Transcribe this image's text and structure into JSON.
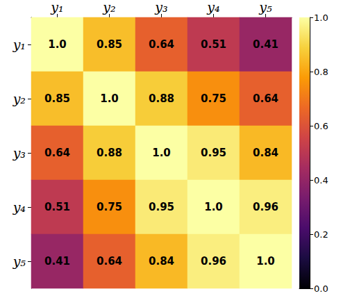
{
  "chart_data": {
    "type": "heatmap",
    "x_categories": [
      "y₁",
      "y₂",
      "y₃",
      "y₄",
      "y₅"
    ],
    "y_categories": [
      "y₁",
      "y₂",
      "y₃",
      "y₄",
      "y₅"
    ],
    "values": [
      [
        1.0,
        0.85,
        0.64,
        0.51,
        0.41
      ],
      [
        0.85,
        1.0,
        0.88,
        0.75,
        0.64
      ],
      [
        0.64,
        0.88,
        1.0,
        0.95,
        0.84
      ],
      [
        0.51,
        0.75,
        0.95,
        1.0,
        0.96
      ],
      [
        0.41,
        0.64,
        0.84,
        0.96,
        1.0
      ]
    ],
    "value_labels": [
      [
        "1.0",
        "0.85",
        "0.64",
        "0.51",
        "0.41"
      ],
      [
        "0.85",
        "1.0",
        "0.88",
        "0.75",
        "0.64"
      ],
      [
        "0.64",
        "0.88",
        "1.0",
        "0.95",
        "0.84"
      ],
      [
        "0.51",
        "0.75",
        "0.95",
        "1.0",
        "0.96"
      ],
      [
        "0.41",
        "0.64",
        "0.84",
        "0.96",
        "1.0"
      ]
    ],
    "data_labels": true,
    "colorbar_range": [
      0,
      1
    ],
    "colorbar_ticks": [
      {
        "value": 0,
        "label": "0.0"
      },
      {
        "value": 0.2,
        "label": "0.2"
      },
      {
        "value": 0.4,
        "label": "0.4"
      },
      {
        "value": 0.6,
        "label": "0.6"
      },
      {
        "value": 0.8,
        "label": "0.8"
      },
      {
        "value": 1,
        "label": "1.0"
      }
    ]
  }
}
